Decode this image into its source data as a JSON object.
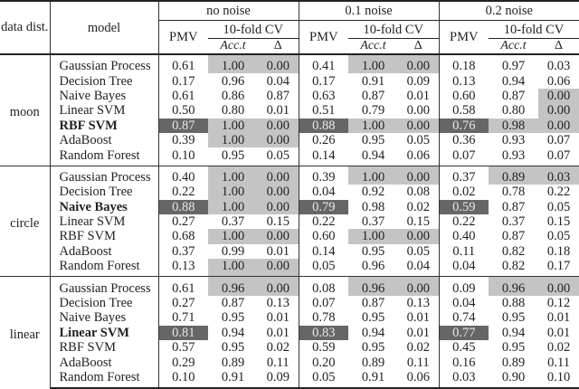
{
  "header": {
    "data_dist": "data dist.",
    "model": "model",
    "groups": [
      "no noise",
      "0.1 noise",
      "0.2 noise"
    ],
    "pmv": "PMV",
    "cv": "10-fold CV",
    "acc": "Acc.t",
    "delta": "Δ"
  },
  "colors": {
    "highlight_light": "#c4c4c4",
    "highlight_dark": "#666666"
  },
  "sections": [
    {
      "dist": "moon",
      "rows": [
        {
          "model": "Gaussian Process",
          "bold": false,
          "v": [
            "0.61",
            "1.00",
            "0.00",
            "0.41",
            "1.00",
            "0.00",
            "0.18",
            "0.97",
            "0.03"
          ],
          "hl": [
            "",
            "l",
            "l",
            "",
            "l",
            "l",
            "",
            "",
            ""
          ]
        },
        {
          "model": "Decision Tree",
          "bold": false,
          "v": [
            "0.17",
            "0.96",
            "0.04",
            "0.17",
            "0.91",
            "0.09",
            "0.13",
            "0.94",
            "0.06"
          ],
          "hl": [
            "",
            "",
            "",
            "",
            "",
            "",
            "",
            "",
            ""
          ]
        },
        {
          "model": "Naive Bayes",
          "bold": false,
          "v": [
            "0.61",
            "0.86",
            "0.87",
            "0.63",
            "0.87",
            "0.01",
            "0.60",
            "0.87",
            "0.00"
          ],
          "hl": [
            "",
            "",
            "",
            "",
            "",
            "",
            "",
            "",
            "l"
          ]
        },
        {
          "model": "Linear SVM",
          "bold": false,
          "v": [
            "0.50",
            "0.80",
            "0.01",
            "0.51",
            "0.79",
            "0.00",
            "0.58",
            "0.80",
            "0.00"
          ],
          "hl": [
            "",
            "",
            "",
            "",
            "",
            "",
            "",
            "",
            "l"
          ]
        },
        {
          "model": "RBF SVM",
          "bold": true,
          "v": [
            "0.87",
            "1.00",
            "0.00",
            "0.88",
            "1.00",
            "0.00",
            "0.76",
            "0.98",
            "0.00"
          ],
          "hl": [
            "d",
            "l",
            "l",
            "d",
            "l",
            "l",
            "d",
            "l",
            "l"
          ]
        },
        {
          "model": "AdaBoost",
          "bold": false,
          "v": [
            "0.39",
            "1.00",
            "0.00",
            "0.26",
            "0.95",
            "0.05",
            "0.36",
            "0.93",
            "0.07"
          ],
          "hl": [
            "",
            "l",
            "l",
            "",
            "",
            "",
            "",
            "",
            ""
          ]
        },
        {
          "model": "Random Forest",
          "bold": false,
          "v": [
            "0.10",
            "0.95",
            "0.05",
            "0.14",
            "0.94",
            "0.06",
            "0.07",
            "0.93",
            "0.07"
          ],
          "hl": [
            "",
            "",
            "",
            "",
            "",
            "",
            "",
            "",
            ""
          ]
        }
      ]
    },
    {
      "dist": "circle",
      "rows": [
        {
          "model": "Gaussian Process",
          "bold": false,
          "v": [
            "0.40",
            "1.00",
            "0.00",
            "0.39",
            "1.00",
            "0.00",
            "0.37",
            "0.89",
            "0.03"
          ],
          "hl": [
            "",
            "l",
            "l",
            "",
            "l",
            "l",
            "",
            "l",
            "l"
          ]
        },
        {
          "model": "Decision Tree",
          "bold": false,
          "v": [
            "0.22",
            "1.00",
            "0.00",
            "0.04",
            "0.92",
            "0.08",
            "0.02",
            "0.78",
            "0.22"
          ],
          "hl": [
            "",
            "l",
            "l",
            "",
            "",
            "",
            "",
            "",
            ""
          ]
        },
        {
          "model": "Naive Bayes",
          "bold": true,
          "v": [
            "0.88",
            "1.00",
            "0.00",
            "0.79",
            "0.98",
            "0.02",
            "0.59",
            "0.87",
            "0.05"
          ],
          "hl": [
            "d",
            "l",
            "l",
            "d",
            "",
            "",
            "d",
            "",
            ""
          ]
        },
        {
          "model": "Linear SVM",
          "bold": false,
          "v": [
            "0.27",
            "0.37",
            "0.15",
            "0.22",
            "0.37",
            "0.15",
            "0.22",
            "0.37",
            "0.15"
          ],
          "hl": [
            "",
            "",
            "",
            "",
            "",
            "",
            "",
            "",
            ""
          ]
        },
        {
          "model": "RBF SVM",
          "bold": false,
          "v": [
            "0.68",
            "1.00",
            "0.00",
            "0.60",
            "1.00",
            "0.00",
            "0.40",
            "0.87",
            "0.05"
          ],
          "hl": [
            "",
            "l",
            "l",
            "",
            "l",
            "l",
            "",
            "",
            ""
          ]
        },
        {
          "model": "AdaBoost",
          "bold": false,
          "v": [
            "0.37",
            "0.99",
            "0.01",
            "0.14",
            "0.95",
            "0.05",
            "0.11",
            "0.82",
            "0.18"
          ],
          "hl": [
            "",
            "",
            "",
            "",
            "",
            "",
            "",
            "",
            ""
          ]
        },
        {
          "model": "Random Forest",
          "bold": false,
          "v": [
            "0.13",
            "1.00",
            "0.00",
            "0.05",
            "0.96",
            "0.04",
            "0.04",
            "0.82",
            "0.17"
          ],
          "hl": [
            "",
            "l",
            "l",
            "",
            "",
            "",
            "",
            "",
            ""
          ]
        }
      ]
    },
    {
      "dist": "linear",
      "rows": [
        {
          "model": "Gaussian Process",
          "bold": false,
          "v": [
            "0.61",
            "0.96",
            "0.00",
            "0.08",
            "0.96",
            "0.00",
            "0.09",
            "0.96",
            "0.00"
          ],
          "hl": [
            "",
            "l",
            "l",
            "",
            "l",
            "l",
            "",
            "l",
            "l"
          ]
        },
        {
          "model": "Decision Tree",
          "bold": false,
          "v": [
            "0.27",
            "0.87",
            "0.13",
            "0.07",
            "0.87",
            "0.13",
            "0.04",
            "0.88",
            "0.12"
          ],
          "hl": [
            "",
            "",
            "",
            "",
            "",
            "",
            "",
            "",
            ""
          ]
        },
        {
          "model": "Naive Bayes",
          "bold": false,
          "v": [
            "0.71",
            "0.95",
            "0.01",
            "0.78",
            "0.95",
            "0.01",
            "0.74",
            "0.95",
            "0.01"
          ],
          "hl": [
            "",
            "",
            "",
            "",
            "",
            "",
            "",
            "",
            ""
          ]
        },
        {
          "model": "Linear SVM",
          "bold": true,
          "v": [
            "0.81",
            "0.94",
            "0.01",
            "0.83",
            "0.94",
            "0.01",
            "0.77",
            "0.94",
            "0.01"
          ],
          "hl": [
            "d",
            "",
            "",
            "d",
            "",
            "",
            "d",
            "",
            ""
          ]
        },
        {
          "model": "RBF SVM",
          "bold": false,
          "v": [
            "0.57",
            "0.95",
            "0.02",
            "0.59",
            "0.95",
            "0.02",
            "0.45",
            "0.95",
            "0.02"
          ],
          "hl": [
            "",
            "",
            "",
            "",
            "",
            "",
            "",
            "",
            ""
          ]
        },
        {
          "model": "AdaBoost",
          "bold": false,
          "v": [
            "0.29",
            "0.89",
            "0.11",
            "0.20",
            "0.89",
            "0.11",
            "0.16",
            "0.89",
            "0.11"
          ],
          "hl": [
            "",
            "",
            "",
            "",
            "",
            "",
            "",
            "",
            ""
          ]
        },
        {
          "model": "Random Forest",
          "bold": false,
          "v": [
            "0.10",
            "0.91",
            "0.09",
            "0.05",
            "0.91",
            "0.06",
            "0.03",
            "0.90",
            "0.10"
          ],
          "hl": [
            "",
            "",
            "",
            "",
            "",
            "",
            "",
            "",
            ""
          ]
        }
      ]
    }
  ]
}
